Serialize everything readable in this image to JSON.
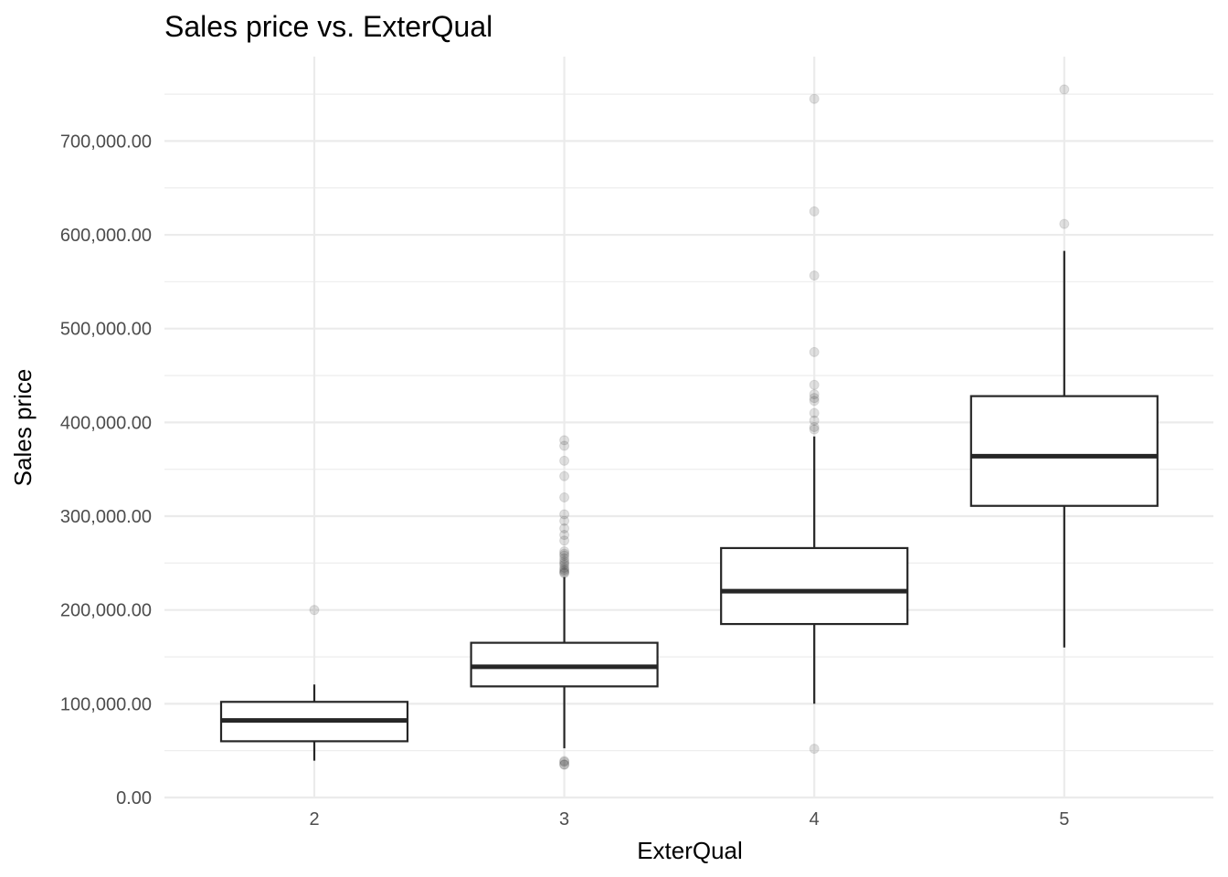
{
  "chart_data": {
    "type": "boxplot",
    "title": "Sales price vs. ExterQual",
    "xlabel": "ExterQual",
    "ylabel": "Sales price",
    "ylim": [
      0,
      790000
    ],
    "y_ticks": [
      0,
      100000,
      200000,
      300000,
      400000,
      500000,
      600000,
      700000
    ],
    "y_tick_labels": [
      "0.00",
      "100,000.00",
      "200,000.00",
      "300,000.00",
      "400,000.00",
      "500,000.00",
      "600,000.00",
      "700,000.00"
    ],
    "categories": [
      "2",
      "3",
      "4",
      "5"
    ],
    "grid": true,
    "boxes": [
      {
        "category": "2",
        "whisker_low": 39300,
        "q1": 60000,
        "median": 82250,
        "q3": 102000,
        "whisker_high": 120500,
        "outliers": [
          200000
        ]
      },
      {
        "category": "3",
        "whisker_low": 52500,
        "q1": 118500,
        "median": 139450,
        "q3": 165000,
        "whisker_high": 235000,
        "outliers": [
          34900,
          35300,
          37900,
          39000,
          239000,
          240000,
          241500,
          243000,
          245000,
          248000,
          250000,
          252000,
          255000,
          258000,
          260000,
          262500,
          274000,
          280000,
          287000,
          295000,
          302000,
          320000,
          342643,
          359100,
          375000,
          381000
        ]
      },
      {
        "category": "4",
        "whisker_low": 100000,
        "q1": 185000,
        "median": 220000,
        "q3": 266000,
        "whisker_high": 385000,
        "outliers": [
          52000,
          392500,
          395000,
          402000,
          410000,
          423000,
          426000,
          430000,
          440000,
          475000,
          556581,
          625000,
          745000
        ]
      },
      {
        "category": "5",
        "whisker_low": 160000,
        "q1": 311000,
        "median": 364000,
        "q3": 428000,
        "whisker_high": 582933,
        "outliers": [
          611657,
          755000
        ]
      }
    ],
    "colors": {
      "box_line": "#262626",
      "outlier": "#000000",
      "grid": "#ebebeb"
    }
  }
}
